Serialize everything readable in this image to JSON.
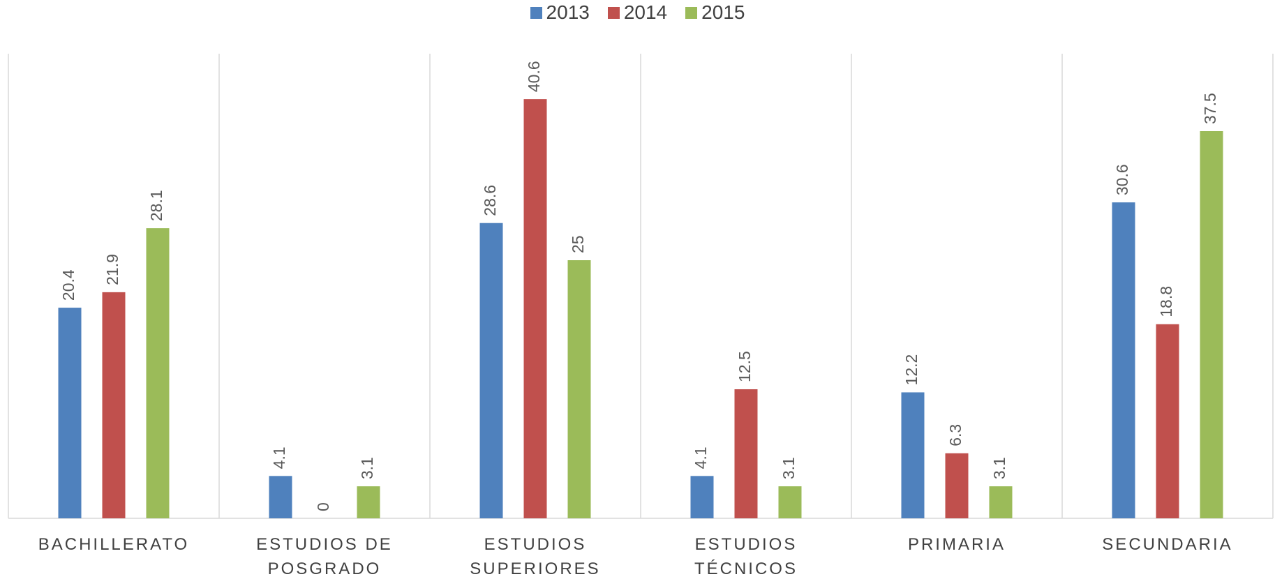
{
  "chart_data": {
    "type": "bar",
    "categories": [
      "BACHILLERATO",
      "ESTUDIOS DE POSGRADO",
      "ESTUDIOS SUPERIORES",
      "ESTUDIOS TÉCNICOS",
      "PRIMARIA",
      "SECUNDARIA"
    ],
    "series": [
      {
        "name": "2013",
        "color": "#4f81bd",
        "values": [
          20.4,
          4.1,
          28.6,
          4.1,
          12.2,
          30.6
        ]
      },
      {
        "name": "2014",
        "color": "#c0504d",
        "values": [
          21.9,
          0,
          40.6,
          12.5,
          6.3,
          18.8
        ]
      },
      {
        "name": "2015",
        "color": "#9bbb59",
        "values": [
          28.1,
          3.1,
          25,
          3.1,
          3.1,
          37.5
        ]
      }
    ],
    "ylim": [
      0,
      45
    ],
    "legend": "top"
  }
}
